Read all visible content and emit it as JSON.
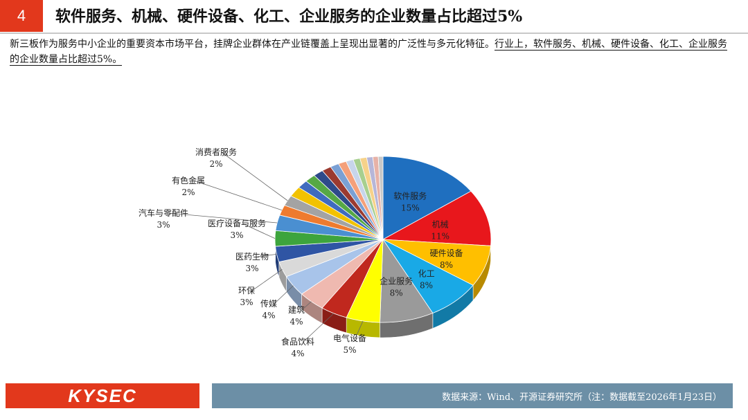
{
  "header": {
    "slide_number": "4",
    "title": "软件服务、机械、硬件设备、化工、企业服务的企业数量占比超过5%"
  },
  "summary": {
    "text_main": "新三板作为服务中小企业的重要资本市场平台，挂牌企业群体在产业链覆盖上呈现出显著的广泛性与多元化特征。",
    "text_highlight": "行业上，软件服务、机械、硬件设备、化工、企业服务的企业数量占比超过5%。"
  },
  "chart_data": {
    "type": "pie",
    "title": "",
    "slices": [
      {
        "label": "软件服务",
        "pct_label": "15%",
        "value": 15,
        "color": "#1f6fbf"
      },
      {
        "label": "机械",
        "pct_label": "11%",
        "value": 11,
        "color": "#e8171c"
      },
      {
        "label": "硬件设备",
        "pct_label": "8%",
        "value": 8,
        "color": "#ffbf00"
      },
      {
        "label": "化工",
        "pct_label": "8%",
        "value": 8,
        "color": "#19a9e6"
      },
      {
        "label": "企业服务",
        "pct_label": "8%",
        "value": 8,
        "color": "#9a9a9a"
      },
      {
        "label": "电气设备",
        "pct_label": "5%",
        "value": 5,
        "color": "#ffff00"
      },
      {
        "label": "食品饮料",
        "pct_label": "4%",
        "value": 4,
        "color": "#c0281e"
      },
      {
        "label": "建筑",
        "pct_label": "4%",
        "value": 4,
        "color": "#efb9b0"
      },
      {
        "label": "传媒",
        "pct_label": "4%",
        "value": 4,
        "color": "#a8c4ea"
      },
      {
        "label": "环保",
        "pct_label": "3%",
        "value": 3,
        "color": "#d9d9d9"
      },
      {
        "label": "医药生物",
        "pct_label": "3%",
        "value": 3,
        "color": "#2f55a4"
      },
      {
        "label": "医疗设备与服务",
        "pct_label": "3%",
        "value": 3,
        "color": "#3da43d"
      },
      {
        "label": "汽车与零配件",
        "pct_label": "3%",
        "value": 3,
        "color": "#4a8fd1"
      },
      {
        "label": "有色金属",
        "pct_label": "2%",
        "value": 2,
        "color": "#ee7b2f"
      },
      {
        "label": "消费者服务",
        "pct_label": "2%",
        "value": 2,
        "color": "#a3a3a3"
      },
      {
        "label": "",
        "pct_label": "",
        "value": 2,
        "color": "#f2c200"
      },
      {
        "label": "",
        "pct_label": "",
        "value": 1.6,
        "color": "#3f6bbf"
      },
      {
        "label": "",
        "pct_label": "",
        "value": 1.6,
        "color": "#56a845"
      },
      {
        "label": "",
        "pct_label": "",
        "value": 1.5,
        "color": "#2e4a8a"
      },
      {
        "label": "",
        "pct_label": "",
        "value": 1.4,
        "color": "#9b3a30"
      },
      {
        "label": "",
        "pct_label": "",
        "value": 1.3,
        "color": "#7aa0d4"
      },
      {
        "label": "",
        "pct_label": "",
        "value": 1.2,
        "color": "#f4a07a"
      },
      {
        "label": "",
        "pct_label": "",
        "value": 1.1,
        "color": "#c7d5ea"
      },
      {
        "label": "",
        "pct_label": "",
        "value": 1.0,
        "color": "#a7cf8f"
      },
      {
        "label": "",
        "pct_label": "",
        "value": 1.0,
        "color": "#f6d28a"
      },
      {
        "label": "",
        "pct_label": "",
        "value": 0.9,
        "color": "#b6b6d8"
      },
      {
        "label": "",
        "pct_label": "",
        "value": 0.8,
        "color": "#e7b2a7"
      },
      {
        "label": "",
        "pct_label": "",
        "value": 0.7,
        "color": "#c8c8c8"
      }
    ]
  },
  "footer": {
    "logo": "KYSEC",
    "source": "数据来源：Wind、开源证券研究所（注：数据截至2026年1月23日）"
  }
}
